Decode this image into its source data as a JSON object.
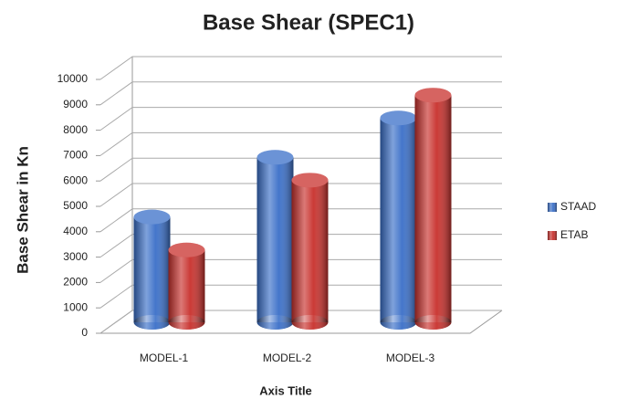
{
  "chart_data": {
    "type": "bar",
    "title": "Base Shear (SPEC1)",
    "x_label": "Axis Title",
    "y_label": "Base Shear in Kn",
    "categories": [
      "MODEL-1",
      "MODEL-2",
      "MODEL-3"
    ],
    "series": [
      {
        "name": "STAAD",
        "color": "#3a6fc8",
        "values": [
          4150,
          6500,
          8050
        ]
      },
      {
        "name": "ETAB",
        "color": "#c8302c",
        "values": [
          2850,
          5600,
          8950
        ]
      }
    ],
    "ylim": [
      0,
      10000
    ],
    "yticks": [
      0,
      1000,
      2000,
      3000,
      4000,
      5000,
      6000,
      7000,
      8000,
      9000,
      10000
    ],
    "grid": true,
    "legend": "right"
  }
}
